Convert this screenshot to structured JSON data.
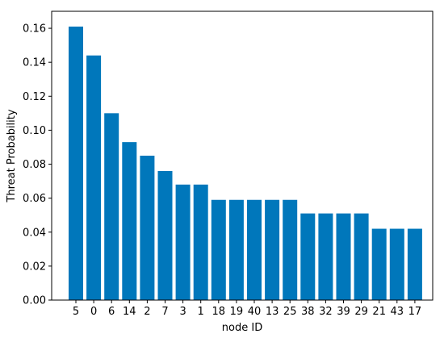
{
  "chart_data": {
    "type": "bar",
    "title": "",
    "xlabel": "node ID",
    "ylabel": "Threat Probability",
    "categories": [
      "5",
      "0",
      "6",
      "14",
      "2",
      "7",
      "3",
      "1",
      "18",
      "19",
      "40",
      "13",
      "25",
      "38",
      "32",
      "39",
      "29",
      "21",
      "43",
      "17"
    ],
    "values": [
      0.161,
      0.144,
      0.11,
      0.093,
      0.085,
      0.076,
      0.068,
      0.068,
      0.059,
      0.059,
      0.059,
      0.059,
      0.059,
      0.051,
      0.051,
      0.051,
      0.051,
      0.042,
      0.042,
      0.042
    ],
    "ylim": [
      0,
      0.17
    ],
    "yticks": [
      "0.00",
      "0.02",
      "0.04",
      "0.06",
      "0.08",
      "0.10",
      "0.12",
      "0.14",
      "0.16"
    ],
    "grid": false,
    "legend": "none",
    "bar_color": "#0077bb"
  }
}
